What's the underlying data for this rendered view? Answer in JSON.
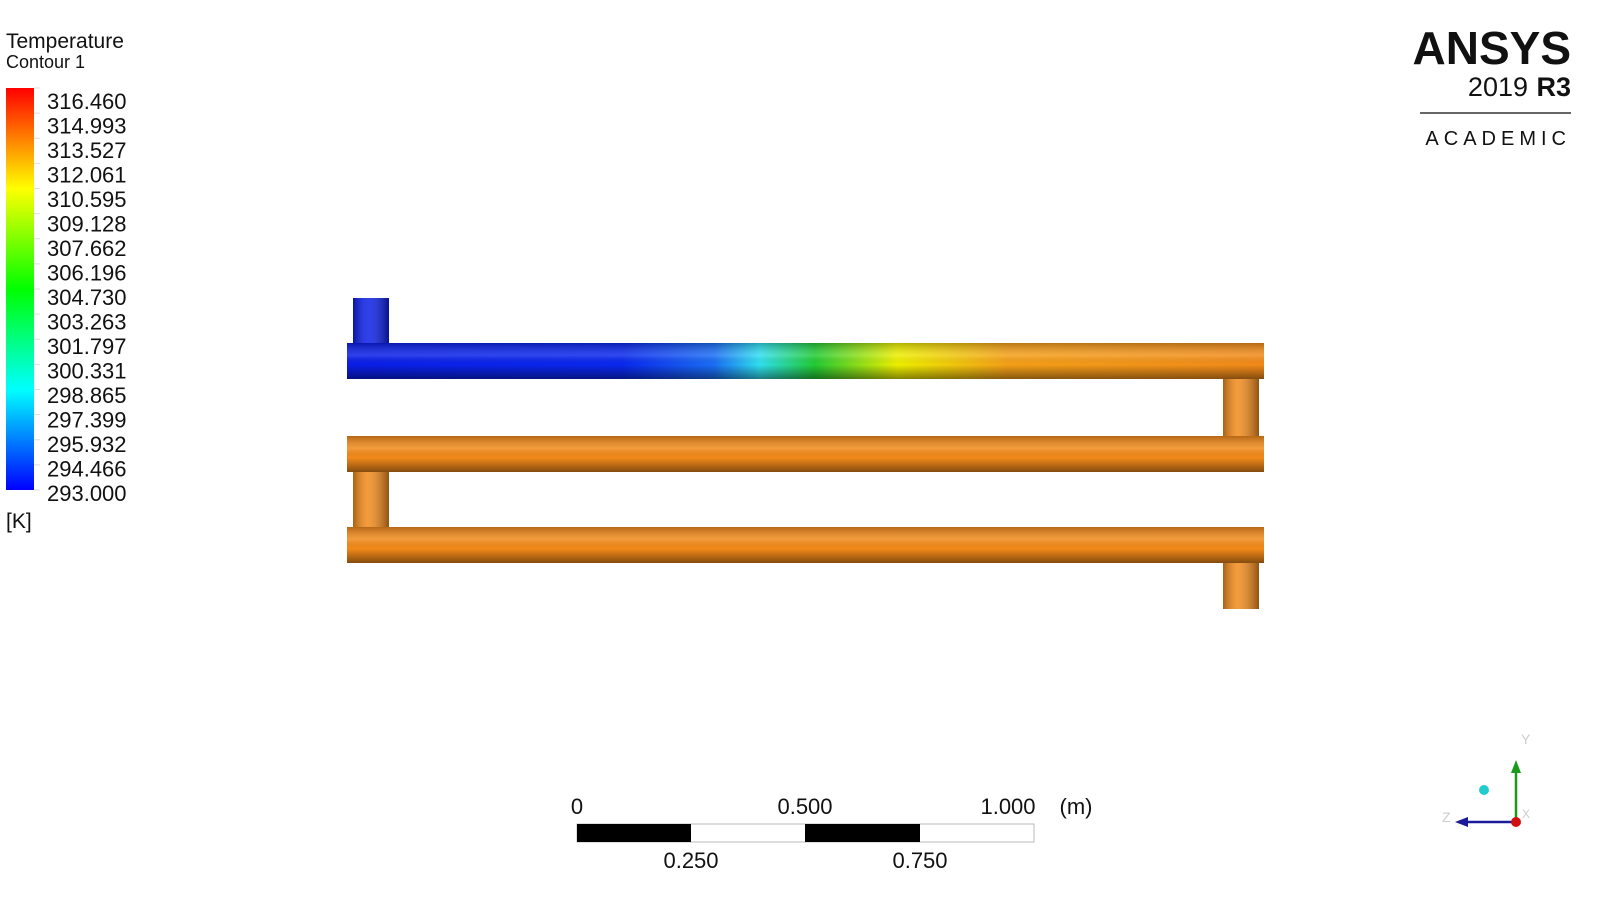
{
  "legend": {
    "title": "Temperature",
    "subtitle": "Contour 1",
    "levels": [
      "316.460",
      "314.993",
      "313.527",
      "312.061",
      "310.595",
      "309.128",
      "307.662",
      "306.196",
      "304.730",
      "303.263",
      "301.797",
      "300.331",
      "298.865",
      "297.399",
      "295.932",
      "294.466",
      "293.000"
    ],
    "unit": "[K]"
  },
  "scale_bar": {
    "top_labels": [
      "0",
      "0.500",
      "1.000"
    ],
    "bottom_labels": [
      "0.250",
      "0.750"
    ],
    "unit": "(m)"
  },
  "logo": {
    "brand": "ANSYS",
    "version": "2019",
    "release": "R3",
    "edition": "ACADEMIC"
  },
  "triad": {
    "y": "Y",
    "z": "Z",
    "x": "X"
  }
}
